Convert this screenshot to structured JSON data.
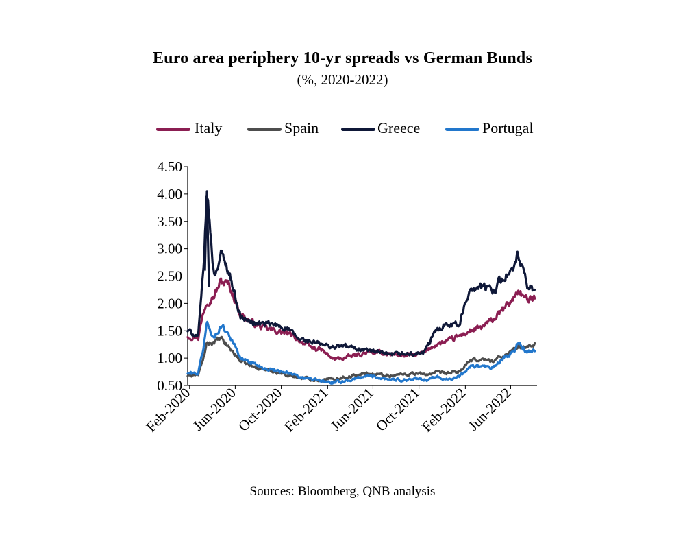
{
  "chart_data": {
    "type": "line",
    "title": "Euro area periphery 10-yr spreads vs German Bunds",
    "subtitle": "(%, 2020-2022)",
    "source": "Sources: Bloomberg, QNB analysis",
    "legend_position": "top",
    "grid": false,
    "ylim": [
      0.5,
      4.5
    ],
    "y_ticks": [
      "4.50",
      "4.00",
      "3.50",
      "3.00",
      "2.50",
      "2.00",
      "1.50",
      "1.00",
      "0.50"
    ],
    "x_ticks": [
      "Feb-2020",
      "Jun-2020",
      "Oct-2020",
      "Feb-2021",
      "Jun-2021",
      "Oct-2021",
      "Feb-2022",
      "Jun-2022"
    ],
    "x": [
      "2020-01-27",
      "2020-02-24",
      "2020-03-09",
      "2020-03-18",
      "2020-04-06",
      "2020-04-24",
      "2020-05-15",
      "2020-06-15",
      "2020-07-15",
      "2020-08-15",
      "2020-09-15",
      "2020-10-15",
      "2020-11-15",
      "2020-12-15",
      "2021-01-15",
      "2021-02-15",
      "2021-03-15",
      "2021-04-15",
      "2021-05-15",
      "2021-06-15",
      "2021-07-15",
      "2021-08-15",
      "2021-09-15",
      "2021-10-15",
      "2021-11-15",
      "2021-12-15",
      "2022-01-15",
      "2022-02-15",
      "2022-03-15",
      "2022-04-15",
      "2022-05-15",
      "2022-06-10",
      "2022-06-20",
      "2022-07-15",
      "2022-08-05"
    ],
    "series": [
      {
        "name": "Italy",
        "color": "#8b1e52",
        "values": [
          1.4,
          1.38,
          1.85,
          2.05,
          2.15,
          2.4,
          2.35,
          1.8,
          1.65,
          1.55,
          1.5,
          1.45,
          1.35,
          1.2,
          1.15,
          0.98,
          1.0,
          1.05,
          1.1,
          1.1,
          1.08,
          1.05,
          1.05,
          1.1,
          1.25,
          1.3,
          1.4,
          1.5,
          1.55,
          1.7,
          1.9,
          2.1,
          2.25,
          2.05,
          2.1
        ]
      },
      {
        "name": "Spain",
        "color": "#4d4d4d",
        "values": [
          0.68,
          0.7,
          1.0,
          1.25,
          1.3,
          1.35,
          1.2,
          0.95,
          0.85,
          0.8,
          0.75,
          0.7,
          0.65,
          0.62,
          0.6,
          0.62,
          0.65,
          0.68,
          0.72,
          0.7,
          0.68,
          0.7,
          0.72,
          0.7,
          0.73,
          0.72,
          0.75,
          0.95,
          0.98,
          0.95,
          1.05,
          1.15,
          1.2,
          1.2,
          1.25
        ]
      },
      {
        "name": "Greece",
        "color": "#0f1838",
        "values": [
          1.5,
          1.4,
          2.6,
          4.05,
          2.5,
          2.9,
          2.6,
          1.75,
          1.65,
          1.62,
          1.6,
          1.55,
          1.35,
          1.3,
          1.25,
          1.2,
          1.22,
          1.18,
          1.15,
          1.1,
          1.05,
          1.08,
          1.07,
          1.1,
          1.5,
          1.65,
          1.6,
          2.3,
          2.3,
          2.25,
          2.5,
          2.6,
          2.9,
          2.3,
          2.25
        ]
      },
      {
        "name": "Portugal",
        "color": "#2277cc",
        "values": [
          0.72,
          0.72,
          1.2,
          1.65,
          1.35,
          1.6,
          1.45,
          1.0,
          0.92,
          0.82,
          0.78,
          0.75,
          0.65,
          0.62,
          0.58,
          0.55,
          0.58,
          0.62,
          0.68,
          0.65,
          0.62,
          0.6,
          0.62,
          0.6,
          0.65,
          0.62,
          0.65,
          0.85,
          0.85,
          0.82,
          1.0,
          1.1,
          1.3,
          1.1,
          1.15
        ]
      }
    ]
  }
}
